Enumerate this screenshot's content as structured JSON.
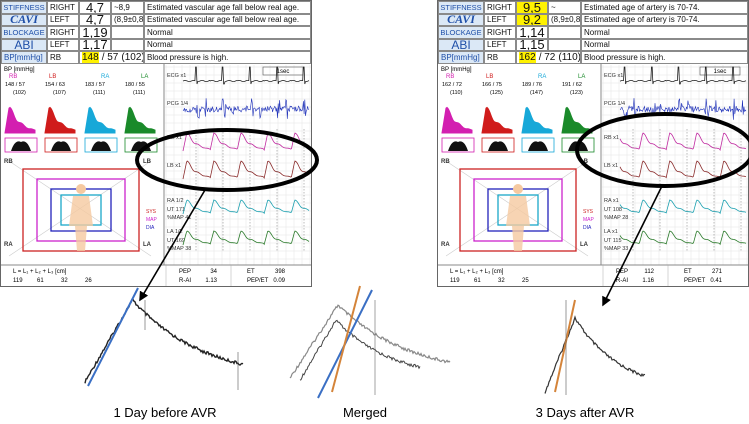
{
  "panels": [
    {
      "rows": [
        {
          "label": "STIFFNESS",
          "side": "RIGHT",
          "value": "4,7",
          "range": "~8,9",
          "message": "Estimated vascular age fall below real age."
        },
        {
          "label": "CAVI",
          "side": "LEFT",
          "value": "4,7",
          "range": "(8,9±0,8)",
          "message": "Estimated vascular age fall below real age."
        },
        {
          "label": "BLOCKAGE",
          "side": "RIGHT",
          "value": "1,19",
          "message": "Normal"
        },
        {
          "label": "ABI",
          "side": "LEFT",
          "value": "1,17",
          "message": "Normal"
        }
      ],
      "bp": {
        "label": "BP[mmHg]",
        "side": "RB",
        "sys": "148",
        "dia": "/ 57",
        "mean": "(102)",
        "message": "Blood pressure is high."
      },
      "sites_title": "BP [mmHg]",
      "sites": [
        {
          "name": "RB",
          "reading": "148 / 57",
          "mean": "(102)"
        },
        {
          "name": "LB",
          "reading": "154 / 63",
          "mean": "(107)"
        },
        {
          "name": "RA",
          "reading": "183 / 57",
          "mean": "(111)"
        },
        {
          "name": "LA",
          "reading": "180 / 55",
          "mean": "(111)"
        }
      ],
      "scale": "1sec",
      "traces": [
        {
          "label": "ECG x1"
        },
        {
          "label": "PCG 1/4"
        },
        {
          "label": "RB x1"
        },
        {
          "label": "LB x1"
        },
        {
          "label": "RA 1/2",
          "ut": "UT  171",
          "map": "%MAP  41"
        },
        {
          "label": "LA 1/2",
          "ut": "UT  169",
          "map": "%MAP  38"
        }
      ],
      "legend": [
        "SYS",
        "MAP",
        "DIA"
      ],
      "footer": {
        "formula": "L  =  L₁  +  L₂  +  L₃ [cm]",
        "values": [
          "119",
          "61",
          "32",
          "26"
        ],
        "items": [
          {
            "name": "PEP",
            "value": "34"
          },
          {
            "name": "ET",
            "value": "398"
          },
          {
            "name": "R-AI",
            "value": "1.13"
          },
          {
            "name": "PEP/ET",
            "value": "0.09"
          }
        ]
      }
    },
    {
      "rows": [
        {
          "label": "STIFFNESS",
          "side": "RIGHT",
          "value": "9,5",
          "range": "~",
          "message": "Estimated age of artery is 70-74.",
          "highlight": true
        },
        {
          "label": "CAVI",
          "side": "LEFT",
          "value": "9,2",
          "range": "(8,9±0,8)",
          "message": "Estimated age of artery is 70-74.",
          "highlight": true
        },
        {
          "label": "BLOCKAGE",
          "side": "RIGHT",
          "value": "1,14",
          "message": "Normal"
        },
        {
          "label": "ABI",
          "side": "LEFT",
          "value": "1,15",
          "message": "Normal"
        }
      ],
      "bp": {
        "label": "BP[mmHg]",
        "side": "RB",
        "sys": "162",
        "dia": "/ 72",
        "mean": "(110)",
        "message": "Blood pressure is high."
      },
      "sites_title": "BP [mmHg]",
      "sites": [
        {
          "name": "RB",
          "reading": "162 / 72",
          "mean": "(110)"
        },
        {
          "name": "LB",
          "reading": "166 / 75",
          "mean": "(125)"
        },
        {
          "name": "RA",
          "reading": "189 / 76",
          "mean": "(147)"
        },
        {
          "name": "LA",
          "reading": "191 / 62",
          "mean": "(123)"
        }
      ],
      "scale": "1sec",
      "traces": [
        {
          "label": "ECG x1"
        },
        {
          "label": "PCG 1/4"
        },
        {
          "label": "RB x1"
        },
        {
          "label": "LB x1"
        },
        {
          "label": "RA x1",
          "ut": "UT  108",
          "map": "%MAP  28"
        },
        {
          "label": "LA x1",
          "ut": "UT  115",
          "map": "%MAP  33"
        }
      ],
      "legend": [
        "SYS",
        "MAP",
        "DIA"
      ],
      "footer": {
        "formula": "L  =  L₁  +  L₂  +  L₃ [cm]",
        "values": [
          "119",
          "61",
          "32",
          "25"
        ],
        "items": [
          {
            "name": "PEP",
            "value": "112"
          },
          {
            "name": "ET",
            "value": "271"
          },
          {
            "name": "R-AI",
            "value": "1.16"
          },
          {
            "name": "PEP/ET",
            "value": "0.41"
          }
        ]
      }
    }
  ],
  "captions": [
    "1 Day before AVR",
    "Merged",
    "3 Days after AVR"
  ]
}
